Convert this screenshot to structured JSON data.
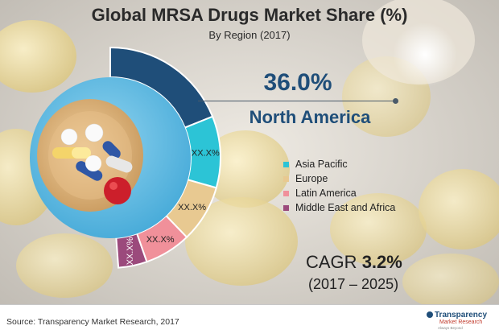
{
  "chart_data": {
    "type": "pie",
    "title": "Global MRSA Drugs Market Share (%)",
    "subtitle": "By Region (2017)",
    "highlight": {
      "value": "36.0%",
      "region": "North America"
    },
    "slices": [
      {
        "name": "North America",
        "value": 36.0,
        "label": "",
        "color": "#1f4e79"
      },
      {
        "name": "Asia Pacific",
        "value": 20.0,
        "label": "XX.X%",
        "color": "#2cc4d6"
      },
      {
        "name": "Europe",
        "value": 16.0,
        "label": "XX.X%",
        "color": "#e8c991"
      },
      {
        "name": "Latin America",
        "value": 13.0,
        "label": "XX.X%",
        "color": "#f0909a"
      },
      {
        "name": "Middle East and Africa",
        "value": 8.0,
        "label": "XX.X%",
        "color": "#9b4a7c"
      }
    ],
    "legend": [
      {
        "name": "Asia Pacific",
        "color": "#2cc4d6"
      },
      {
        "name": "Europe",
        "color": "#e8c991"
      },
      {
        "name": "Latin America",
        "color": "#f0909a"
      },
      {
        "name": "Middle East and Africa",
        "color": "#9b4a7c"
      }
    ],
    "legend_position": "right"
  },
  "cagr": {
    "label": "CAGR",
    "value": "3.2%",
    "period": "(2017 – 2025)"
  },
  "footer": {
    "source": "Source: Transparency Market Research, 2017",
    "logo_main": "Transparency",
    "logo_sub": "Market Research",
    "logo_tag": "Always Beyond"
  },
  "colors": {
    "accent": "#1f4e79"
  }
}
